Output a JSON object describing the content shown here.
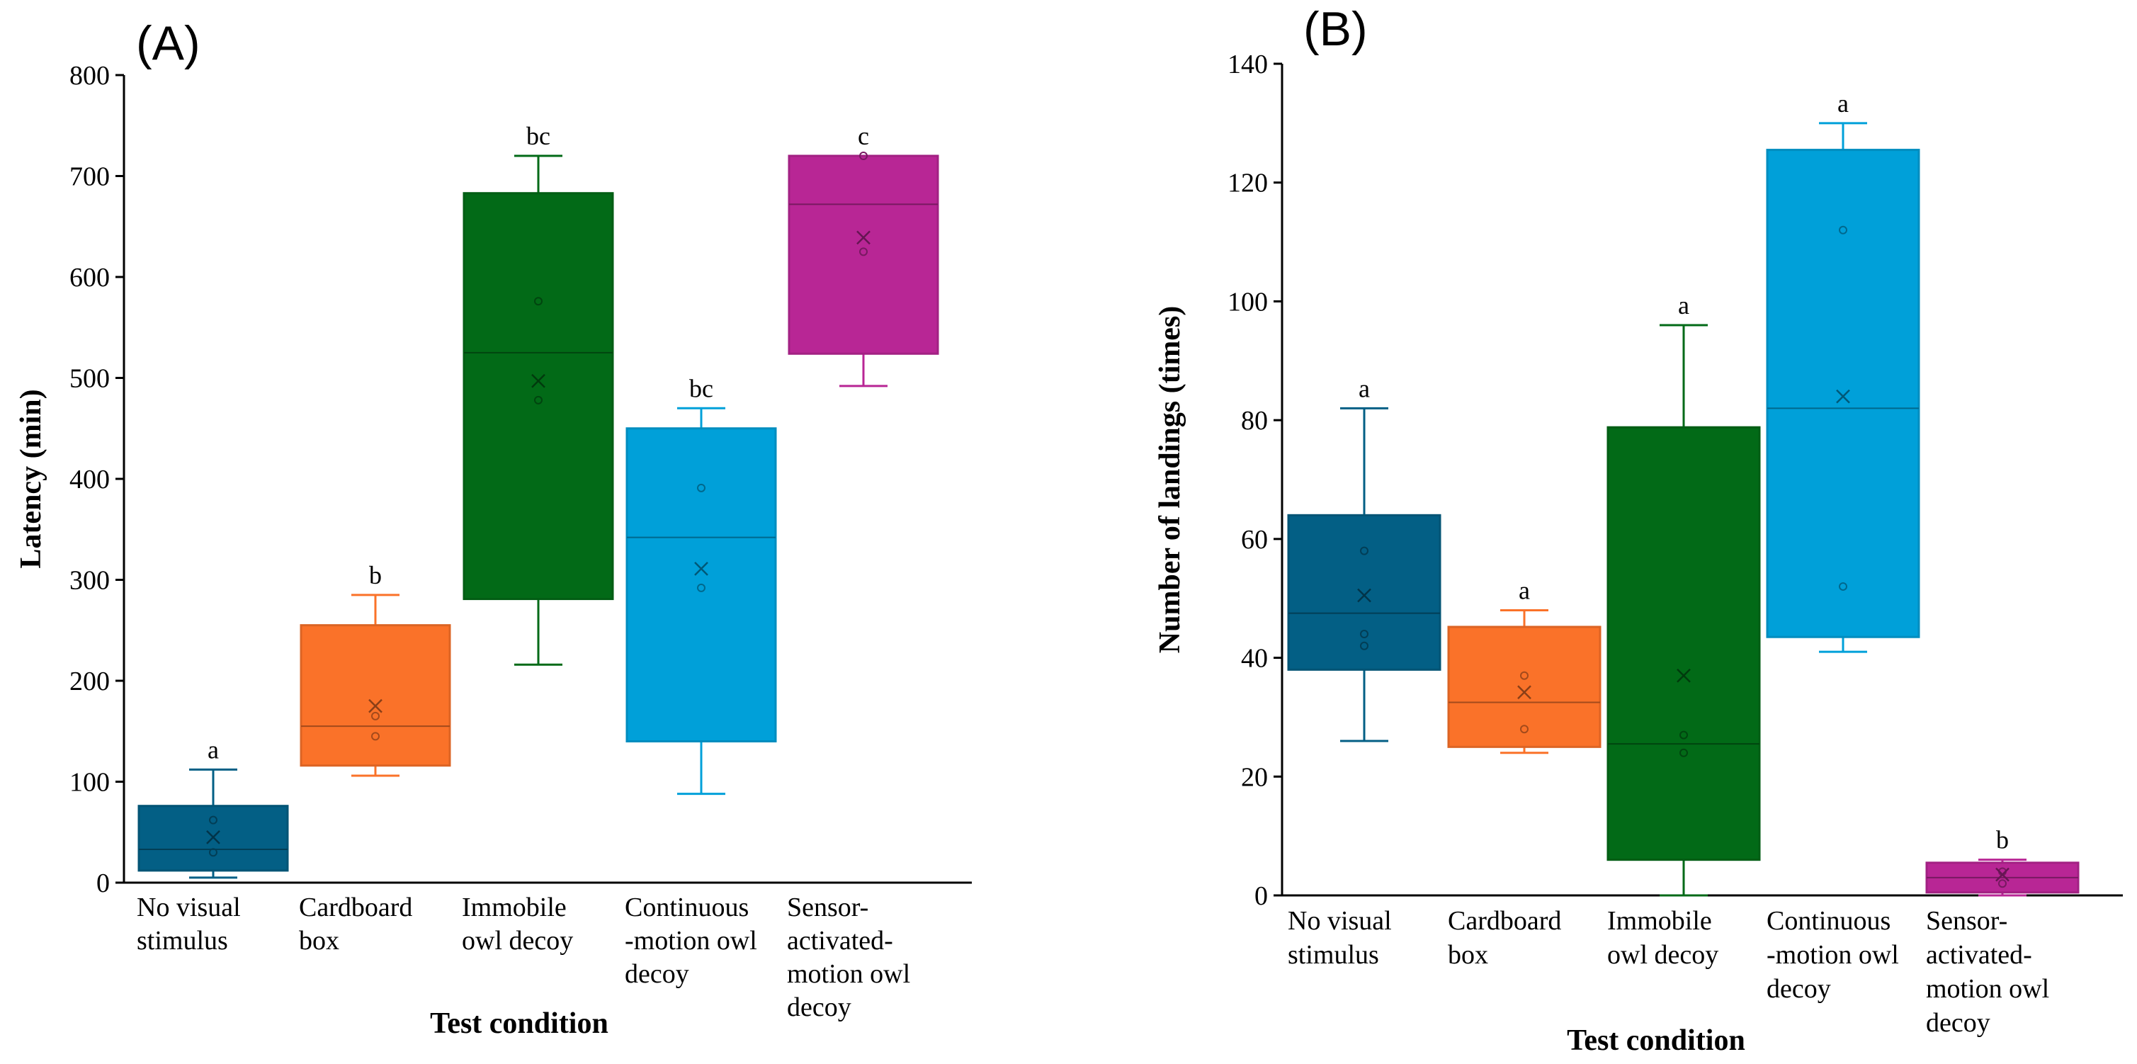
{
  "chart_data": [
    {
      "panel": "(A)",
      "type": "box",
      "ylabel": "Latency (min)",
      "xlabel": "Test condition",
      "ylim": [
        0,
        800
      ],
      "yticks": [
        0,
        100,
        200,
        300,
        400,
        500,
        600,
        700,
        800
      ],
      "categories": [
        [
          "No visual",
          "stimulus"
        ],
        [
          "Cardboard",
          "box"
        ],
        [
          "Immobile",
          "owl decoy"
        ],
        [
          "Continuous",
          "-motion owl",
          "decoy"
        ],
        [
          "Sensor-",
          "activated-",
          "motion owl",
          "decoy"
        ]
      ],
      "boxes": [
        {
          "color": "#035f85",
          "min": 5,
          "q1": 12,
          "median": 33,
          "q3": 76,
          "max": 112,
          "mean": 45,
          "points": [
            30,
            62
          ],
          "sig": "a"
        },
        {
          "color": "#fa7229",
          "min": 106,
          "q1": 116,
          "median": 155,
          "q3": 255,
          "max": 285,
          "mean": 175,
          "points": [
            145,
            165
          ],
          "sig": "b"
        },
        {
          "color": "#026a17",
          "min": 216,
          "q1": 281,
          "median": 525,
          "q3": 683,
          "max": 720,
          "mean": 497,
          "points": [
            478,
            576
          ],
          "sig": "bc"
        },
        {
          "color": "#00a0d9",
          "min": 88,
          "q1": 140,
          "median": 342,
          "q3": 450,
          "max": 470,
          "mean": 311,
          "points": [
            292,
            391
          ],
          "sig": "bc"
        },
        {
          "color": "#b82695",
          "min": 492,
          "q1": 524,
          "median": 672,
          "q3": 720,
          "max": 720,
          "mean": 639,
          "points": [
            625,
            720
          ],
          "sig": "c"
        }
      ]
    },
    {
      "panel": "(B)",
      "type": "box",
      "ylabel": "Number of landings (times)",
      "xlabel": "Test condition",
      "ylim": [
        0,
        140
      ],
      "yticks": [
        0,
        20,
        40,
        60,
        80,
        100,
        120,
        140
      ],
      "categories": [
        [
          "No visual",
          "stimulus"
        ],
        [
          "Cardboard",
          "box"
        ],
        [
          "Immobile",
          "owl decoy"
        ],
        [
          "Continuous",
          "-motion owl",
          "decoy"
        ],
        [
          "Sensor-",
          "activated-",
          "motion owl",
          "decoy"
        ]
      ],
      "boxes": [
        {
          "color": "#035f85",
          "min": 26,
          "q1": 38,
          "median": 47.5,
          "q3": 64,
          "max": 82,
          "mean": 50.5,
          "points": [
            42,
            44,
            58
          ],
          "sig": "a"
        },
        {
          "color": "#fa7229",
          "min": 24,
          "q1": 25,
          "median": 32.5,
          "q3": 45.2,
          "max": 48,
          "mean": 34.2,
          "points": [
            28,
            37
          ],
          "sig": "a"
        },
        {
          "color": "#026a17",
          "min": 0,
          "q1": 6,
          "median": 25.5,
          "q3": 78.8,
          "max": 96,
          "mean": 37,
          "points": [
            24,
            27
          ],
          "sig": "a"
        },
        {
          "color": "#00a0d9",
          "min": 41,
          "q1": 43.5,
          "median": 82,
          "q3": 125.5,
          "max": 130,
          "mean": 84,
          "points": [
            52,
            112
          ],
          "sig": "a"
        },
        {
          "color": "#b82695",
          "min": 0,
          "q1": 0.5,
          "median": 3,
          "q3": 5.5,
          "max": 6,
          "mean": 3.5,
          "points": [
            2,
            4
          ],
          "sig": "b"
        }
      ]
    }
  ]
}
